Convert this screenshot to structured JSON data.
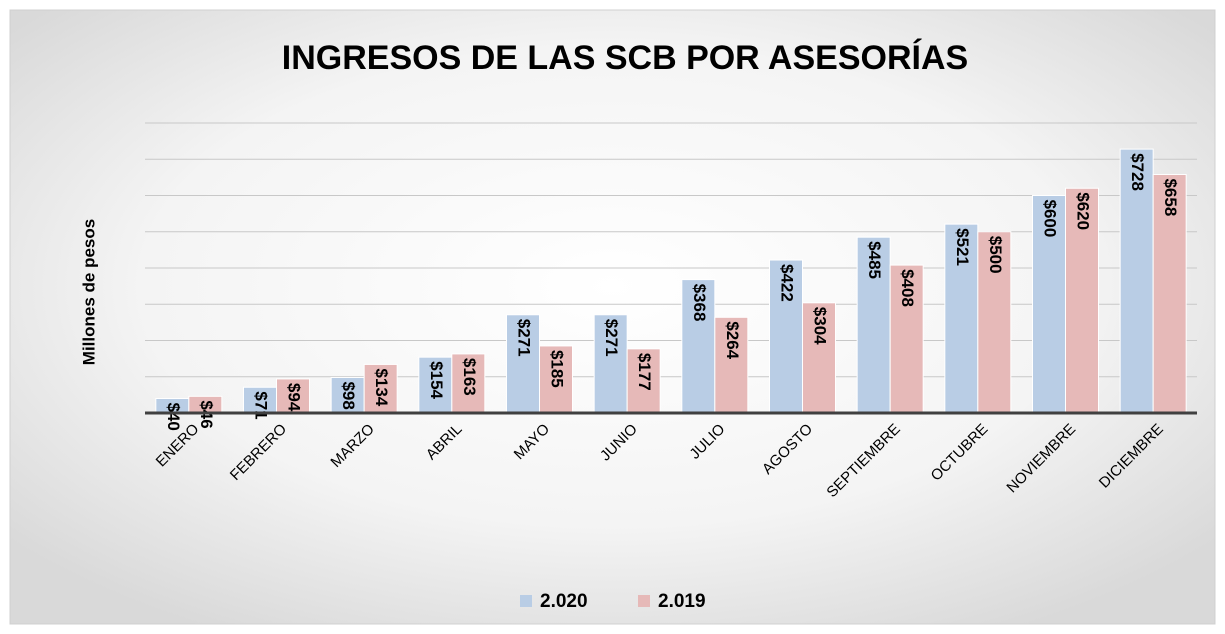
{
  "chart_data": {
    "type": "bar",
    "title": "INGRESOS DE LAS SCB POR ASESORÍAS",
    "y_label": "Millones de pesos",
    "categories": [
      "ENERO",
      "FEBRERO",
      "MARZO",
      "ABRIL",
      "MAYO",
      "JUNIO",
      "JULIO",
      "AGOSTO",
      "SEPTIEMBRE",
      "OCTUBRE",
      "NOVIEMBRE",
      "DICIEMBRE"
    ],
    "series": [
      {
        "name": "2.020",
        "color": "#b9cde5",
        "values": [
          40,
          71,
          98,
          154,
          271,
          271,
          368,
          422,
          485,
          521,
          600,
          728
        ],
        "value_labels": [
          "$40",
          "$71",
          "$98",
          "$154",
          "$271",
          "$271",
          "$368",
          "$422",
          "$485",
          "$521",
          "$600",
          "$728"
        ]
      },
      {
        "name": "2.019",
        "color": "#e6b9b8",
        "values": [
          46,
          94,
          134,
          163,
          185,
          177,
          264,
          304,
          408,
          500,
          620,
          658
        ],
        "value_labels": [
          "$46",
          "$94",
          "$134",
          "$163",
          "$185",
          "$177",
          "$264",
          "$304",
          "$408",
          "$500",
          "$620",
          "$658"
        ]
      }
    ],
    "ylim": [
      0,
      800
    ],
    "yticks": [
      0,
      100,
      200,
      300,
      400,
      500,
      600,
      700,
      800
    ],
    "grid": true,
    "legend": "bottom"
  }
}
